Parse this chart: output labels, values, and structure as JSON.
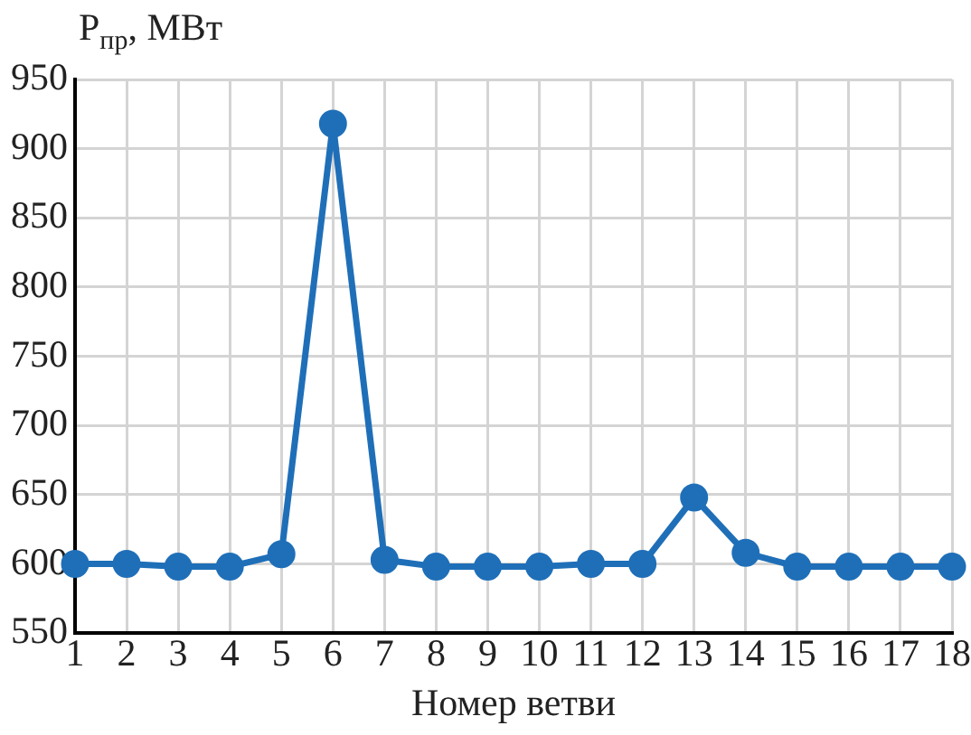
{
  "chart_data": {
    "type": "line",
    "xlabel": "Номер ветви",
    "ylabel": "P$_{пр}$, МВт",
    "x": [
      1,
      2,
      3,
      4,
      5,
      6,
      7,
      8,
      9,
      10,
      11,
      12,
      13,
      14,
      15,
      16,
      17,
      18
    ],
    "series": [
      {
        "color": "#1f6fb8",
        "values": [
          600,
          600,
          598,
          598,
          607,
          918,
          603,
          598,
          598,
          598,
          600,
          600,
          648,
          608,
          598,
          598,
          598,
          598
        ]
      }
    ],
    "xlim": [
      1,
      18
    ],
    "xticks": [
      1,
      2,
      3,
      4,
      5,
      6,
      7,
      8,
      9,
      10,
      11,
      12,
      13,
      14,
      15,
      16,
      17,
      18
    ],
    "ylim": [
      550,
      950
    ],
    "yticks": [
      550,
      600,
      650,
      700,
      750,
      800,
      850,
      900,
      950
    ],
    "grid": true,
    "legend": false,
    "marker": "circle",
    "line_style": "solid"
  }
}
